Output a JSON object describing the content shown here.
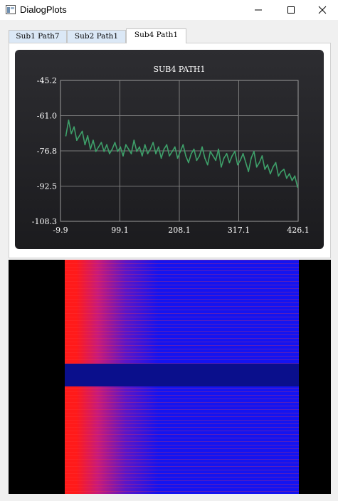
{
  "window": {
    "title": "DialogPlots",
    "minimize_icon": "minimize-icon",
    "maximize_icon": "maximize-icon",
    "close_icon": "close-icon"
  },
  "tabs": [
    {
      "label": "Sub1 Path7",
      "active": false
    },
    {
      "label": "Sub2 Path1",
      "active": false
    },
    {
      "label": "Sub4 Path1",
      "active": true
    }
  ],
  "colors": {
    "line": "#3ea06a",
    "chart_bg": "#232327",
    "grid": "#7a7a7a",
    "spectrogram_high": "#ff1a1a",
    "spectrogram_low": "#1414f0",
    "spectrogram_band": "#0a0f8c"
  },
  "chart_data": {
    "type": "line",
    "title": "SUB4 PATH1",
    "xlabel": "",
    "ylabel": "",
    "xlim": [
      -9.9,
      426.1
    ],
    "ylim": [
      -108.3,
      -45.2
    ],
    "x_ticks": [
      "-9.9",
      "99.1",
      "208.1",
      "317.1",
      "426.1"
    ],
    "y_ticks": [
      "-45.2",
      "-61.0",
      "-76.8",
      "-92.5",
      "-108.3"
    ],
    "grid": true,
    "series": [
      {
        "x": [
          0,
          5,
          10,
          15,
          20,
          25,
          30,
          35,
          40,
          45,
          50,
          55,
          60,
          65,
          70,
          75,
          80,
          85,
          90,
          95,
          100,
          105,
          110,
          115,
          120,
          125,
          130,
          135,
          140,
          145,
          150,
          155,
          160,
          165,
          170,
          175,
          180,
          185,
          190,
          195,
          200,
          205,
          210,
          215,
          220,
          225,
          230,
          235,
          240,
          245,
          250,
          255,
          260,
          265,
          270,
          275,
          280,
          285,
          290,
          295,
          300,
          305,
          310,
          315,
          320,
          325,
          330,
          335,
          340,
          345,
          350,
          355,
          360,
          365,
          370,
          375,
          380,
          385,
          390,
          395,
          400,
          405,
          410,
          415,
          420,
          425
        ],
        "y": [
          -70,
          -63,
          -69,
          -66,
          -72,
          -70,
          -68,
          -74,
          -70,
          -76,
          -72,
          -77,
          -75,
          -73,
          -77,
          -74,
          -78,
          -76,
          -73,
          -77,
          -75,
          -79,
          -74,
          -76,
          -78,
          -72,
          -77,
          -75,
          -79,
          -74,
          -78,
          -76,
          -73,
          -78,
          -75,
          -80,
          -76,
          -74,
          -79,
          -77,
          -75,
          -80,
          -77,
          -74,
          -79,
          -82,
          -78,
          -76,
          -81,
          -79,
          -75,
          -80,
          -83,
          -77,
          -79,
          -81,
          -76,
          -84,
          -80,
          -78,
          -82,
          -79,
          -77,
          -83,
          -81,
          -78,
          -82,
          -86,
          -80,
          -77,
          -84,
          -82,
          -79,
          -85,
          -83,
          -87,
          -84,
          -82,
          -88,
          -86,
          -85,
          -89,
          -87,
          -90,
          -88,
          -93
        ]
      }
    ]
  }
}
